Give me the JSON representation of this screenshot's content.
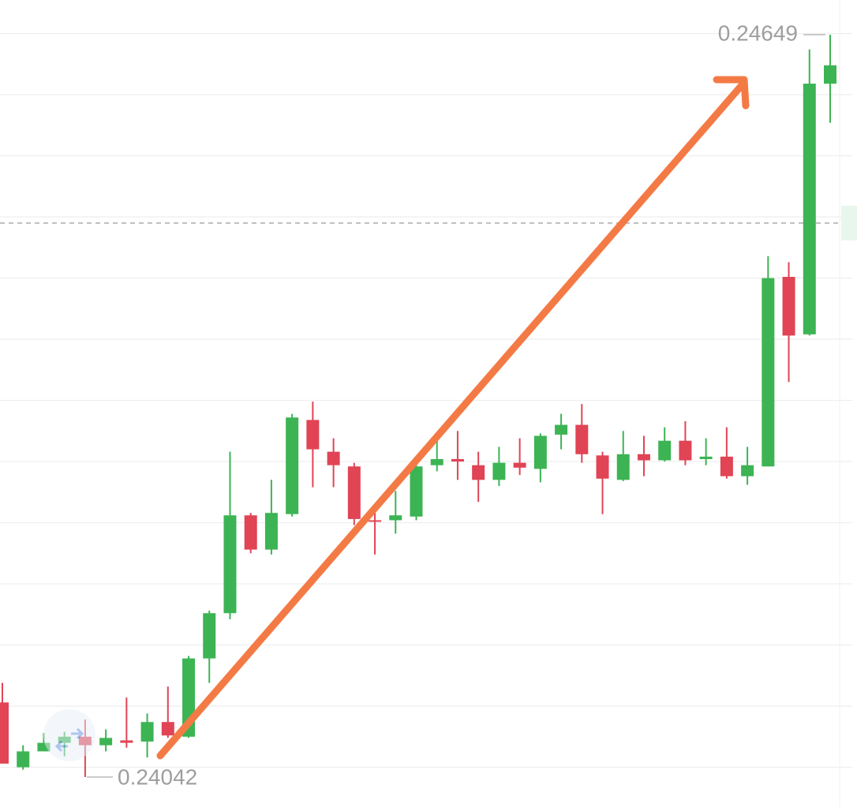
{
  "chart_data": {
    "type": "candlestick",
    "up_color": "#3cb454",
    "down_color": "#e04455",
    "ylim": [
      0.240175,
      0.246774
    ],
    "grid_values": [
      0.2405,
      0.241,
      0.2415,
      0.242,
      0.2425,
      0.243,
      0.2435,
      0.244,
      0.2445,
      0.245,
      0.2455,
      0.246,
      0.2465
    ],
    "price_line": 0.24495,
    "open": [
      0.24103,
      0.2405,
      0.24063,
      0.2407,
      0.24075,
      0.24068,
      0.24072,
      0.24071,
      0.24087,
      0.24075,
      0.24139,
      0.24176,
      0.24256,
      0.24228,
      0.24257,
      0.24334,
      0.24308,
      0.24296,
      0.24252,
      0.24252,
      0.24255,
      0.24297,
      0.24302,
      0.24297,
      0.24285,
      0.24299,
      0.24294,
      0.24322,
      0.2433,
      0.24305,
      0.24285,
      0.24306,
      0.24301,
      0.24317,
      0.24302,
      0.24304,
      0.24288,
      0.24296,
      0.24451,
      0.24404,
      0.24609
    ],
    "high": [
      0.24119,
      0.24068,
      0.24078,
      0.24079,
      0.24089,
      0.24081,
      0.24107,
      0.24094,
      0.24116,
      0.24141,
      0.24178,
      0.24308,
      0.24258,
      0.24285,
      0.24339,
      0.24349,
      0.24319,
      0.24299,
      0.24261,
      0.24276,
      0.24298,
      0.24319,
      0.24325,
      0.24308,
      0.24312,
      0.24319,
      0.24323,
      0.24339,
      0.24347,
      0.24308,
      0.24325,
      0.24321,
      0.24328,
      0.24333,
      0.24319,
      0.24328,
      0.24312,
      0.24468,
      0.24463,
      0.24637,
      0.24649
    ],
    "low": [
      0.24053,
      0.24048,
      0.24063,
      0.24059,
      0.24042,
      0.24063,
      0.24066,
      0.24058,
      0.24074,
      0.24074,
      0.24119,
      0.24171,
      0.24225,
      0.24224,
      0.24255,
      0.24279,
      0.24279,
      0.24248,
      0.24224,
      0.24241,
      0.24252,
      0.24292,
      0.24285,
      0.24267,
      0.2428,
      0.24289,
      0.24283,
      0.2431,
      0.24299,
      0.24257,
      0.24284,
      0.24288,
      0.243,
      0.24297,
      0.24297,
      0.24286,
      0.24281,
      0.24296,
      0.24365,
      0.24403,
      0.24577
    ],
    "close": [
      0.24053,
      0.24063,
      0.2407,
      0.24075,
      0.24068,
      0.24074,
      0.2407,
      0.24087,
      0.24076,
      0.24139,
      0.24176,
      0.24256,
      0.24228,
      0.24258,
      0.24336,
      0.2431,
      0.24297,
      0.24253,
      0.24251,
      0.24256,
      0.24296,
      0.24302,
      0.243,
      0.24285,
      0.24299,
      0.24295,
      0.24321,
      0.2433,
      0.24306,
      0.24286,
      0.24306,
      0.24301,
      0.24317,
      0.24301,
      0.24304,
      0.24288,
      0.24297,
      0.2445,
      0.24403,
      0.24609,
      0.24624
    ],
    "annotations": [
      {
        "label": "0.24649",
        "value": 0.24649
      },
      {
        "label": "0.24042",
        "value": 0.24042
      }
    ]
  }
}
